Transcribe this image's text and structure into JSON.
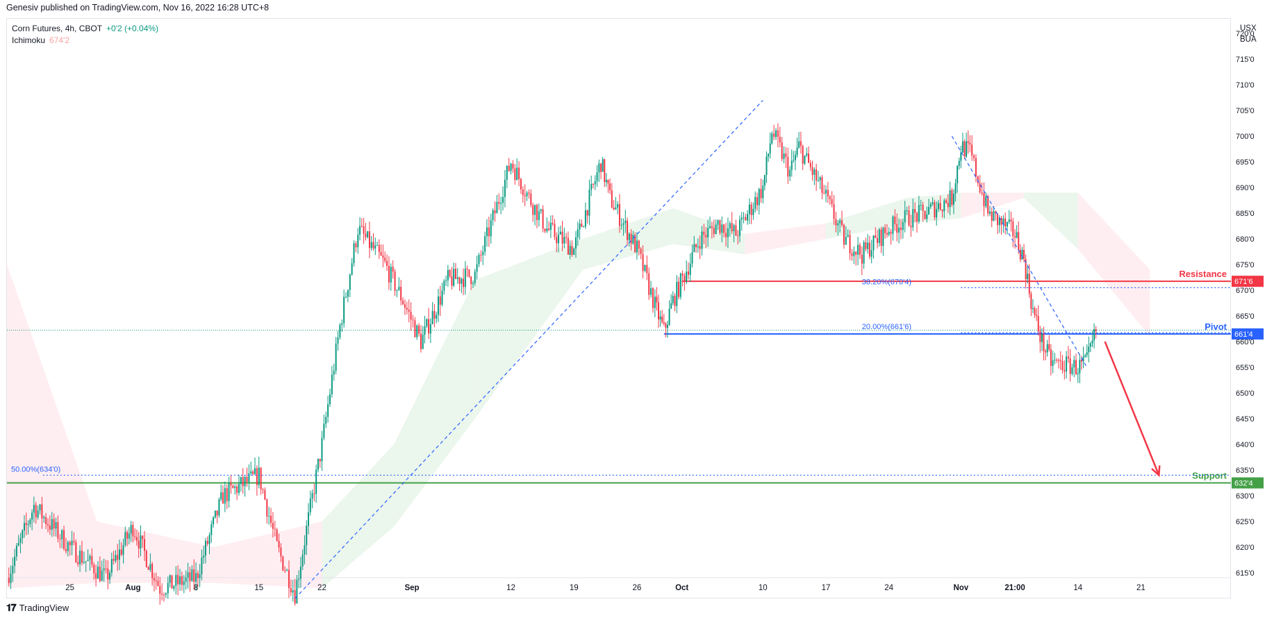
{
  "header": {
    "publisher": "Genesiv published on TradingView.com, Nov 16, 2022 16:28 UTC+8"
  },
  "legend": {
    "symbol": "Corn Futures, 4h, CBOT",
    "change": "+0'2 (+0.04%)",
    "indicator_name": "Ichimoku",
    "indicator_value": "674'2"
  },
  "currency": {
    "line1": "USX",
    "line2": "BUA"
  },
  "footer": {
    "brand": "TradingView"
  },
  "colors": {
    "up": "#089981",
    "down": "#f23645",
    "resistance": "#f23645",
    "pivot": "#2962ff",
    "support": "#43a047",
    "fib": "#2962ff",
    "cloud_bull": "#e8f5e9",
    "cloud_bear": "#ffebee"
  },
  "chart_data": {
    "type": "candlestick",
    "title": "Corn Futures, 4h, CBOT",
    "y_axis": {
      "ticks": [
        "615'0",
        "620'0",
        "625'0",
        "630'0",
        "635'0",
        "640'0",
        "645'0",
        "650'0",
        "655'0",
        "660'0",
        "665'0",
        "670'0",
        "675'0",
        "680'0",
        "685'0",
        "690'0",
        "695'0",
        "700'0",
        "705'0",
        "710'0",
        "715'0",
        "720'0"
      ],
      "range": [
        610,
        723
      ],
      "position": "right"
    },
    "x_axis": {
      "ticks": [
        "25",
        "Aug",
        "8",
        "15",
        "22",
        "Sep",
        "12",
        "19",
        "26",
        "Oct",
        "10",
        "17",
        "24",
        "Nov",
        "21:00",
        "14",
        "21"
      ],
      "range": [
        "Jul 18",
        "Dec 1"
      ]
    },
    "price_path": [
      {
        "t": "Jul 18",
        "p": 614
      },
      {
        "t": "Jul 21",
        "p": 628
      },
      {
        "t": "Jul 25",
        "p": 620
      },
      {
        "t": "Jul 29",
        "p": 614
      },
      {
        "t": "Aug 1",
        "p": 624
      },
      {
        "t": "Aug 4",
        "p": 612
      },
      {
        "t": "Aug 8",
        "p": 614
      },
      {
        "t": "Aug 11",
        "p": 630
      },
      {
        "t": "Aug 15",
        "p": 634
      },
      {
        "t": "Aug 17",
        "p": 620
      },
      {
        "t": "Aug 19",
        "p": 611
      },
      {
        "t": "Aug 22",
        "p": 640
      },
      {
        "t": "Aug 24",
        "p": 663
      },
      {
        "t": "Aug 26",
        "p": 682
      },
      {
        "t": "Aug 29",
        "p": 675
      },
      {
        "t": "Aug 31",
        "p": 668
      },
      {
        "t": "Sep 2",
        "p": 660
      },
      {
        "t": "Sep 5",
        "p": 672
      },
      {
        "t": "Sep 8",
        "p": 673
      },
      {
        "t": "Sep 12",
        "p": 695
      },
      {
        "t": "Sep 14",
        "p": 688
      },
      {
        "t": "Sep 16",
        "p": 682
      },
      {
        "t": "Sep 19",
        "p": 678
      },
      {
        "t": "Sep 22",
        "p": 695
      },
      {
        "t": "Sep 23",
        "p": 688
      },
      {
        "t": "Sep 26",
        "p": 678
      },
      {
        "t": "Sep 28",
        "p": 667
      },
      {
        "t": "Sep 29",
        "p": 662
      },
      {
        "t": "Sep 30",
        "p": 668
      },
      {
        "t": "Oct 3",
        "p": 680
      },
      {
        "t": "Oct 5",
        "p": 683
      },
      {
        "t": "Oct 7",
        "p": 681
      },
      {
        "t": "Oct 10",
        "p": 690
      },
      {
        "t": "Oct 11",
        "p": 701
      },
      {
        "t": "Oct 13",
        "p": 693
      },
      {
        "t": "Oct 14",
        "p": 698
      },
      {
        "t": "Oct 17",
        "p": 688
      },
      {
        "t": "Oct 19",
        "p": 680
      },
      {
        "t": "Oct 21",
        "p": 677
      },
      {
        "t": "Oct 24",
        "p": 682
      },
      {
        "t": "Oct 26",
        "p": 684
      },
      {
        "t": "Oct 28",
        "p": 685
      },
      {
        "t": "Oct 31",
        "p": 688
      },
      {
        "t": "Nov 1",
        "p": 698
      },
      {
        "t": "Nov 2",
        "p": 697
      },
      {
        "t": "Nov 4",
        "p": 685
      },
      {
        "t": "Nov 7",
        "p": 681
      },
      {
        "t": "Nov 8",
        "p": 676
      },
      {
        "t": "Nov 9",
        "p": 666
      },
      {
        "t": "Nov 10",
        "p": 660
      },
      {
        "t": "Nov 11",
        "p": 656
      },
      {
        "t": "Nov 14",
        "p": 655
      },
      {
        "t": "Nov 15",
        "p": 656
      },
      {
        "t": "Nov 16",
        "p": 662
      }
    ],
    "ichimoku_cloud": [
      {
        "t": "Jul 18",
        "a": 675,
        "b": 612,
        "color": "bear"
      },
      {
        "t": "Jul 28",
        "a": 625,
        "b": 613,
        "color": "bear"
      },
      {
        "t": "Aug 10",
        "a": 620,
        "b": 613,
        "color": "bear"
      },
      {
        "t": "Aug 22",
        "a": 625,
        "b": 612,
        "color": "bull"
      },
      {
        "t": "Aug 30",
        "a": 640,
        "b": 624,
        "color": "bull"
      },
      {
        "t": "Sep 8",
        "a": 672,
        "b": 645,
        "color": "bull"
      },
      {
        "t": "Sep 20",
        "a": 680,
        "b": 674,
        "color": "bull"
      },
      {
        "t": "Sep 30",
        "a": 686,
        "b": 679,
        "color": "bull"
      },
      {
        "t": "Oct 8",
        "a": 681,
        "b": 677,
        "color": "bear"
      },
      {
        "t": "Oct 17",
        "a": 683,
        "b": 680,
        "color": "bull"
      },
      {
        "t": "Oct 26",
        "a": 688,
        "b": 683,
        "color": "bull"
      },
      {
        "t": "Nov 1",
        "a": 689,
        "b": 684,
        "color": "bear"
      },
      {
        "t": "Nov 8",
        "a": 689,
        "b": 688,
        "color": "bull"
      },
      {
        "t": "Nov 14",
        "a": 689,
        "b": 678,
        "color": "bear"
      },
      {
        "t": "Nov 22",
        "a": 674,
        "b": 661,
        "color": "bear"
      }
    ],
    "fib_levels": [
      {
        "label": "38.20%(670'4)",
        "value": 670.5
      },
      {
        "label": "20.00%(661'6)",
        "value": 661.75
      },
      {
        "label": "50.00%(634'0)",
        "value": 634
      }
    ],
    "horizontal_lines": [
      {
        "name": "Resistance",
        "value": 671.75,
        "tag": "671'6"
      },
      {
        "name": "Pivot",
        "value": 661.5,
        "tag": "661'4"
      },
      {
        "name": "Support",
        "value": 632.5,
        "tag": "632'4"
      }
    ],
    "current_price": 662.25,
    "forecast_arrow": {
      "from": {
        "t": "Nov 17",
        "p": 660
      },
      "to": {
        "t": "Nov 23",
        "p": 634
      }
    },
    "trendlines": [
      {
        "from": {
          "t": "Aug 19",
          "p": 610
        },
        "to": {
          "t": "Oct 10",
          "p": 707
        }
      },
      {
        "from": {
          "t": "Oct 31",
          "p": 700
        },
        "to": {
          "t": "Nov 15",
          "p": 655
        }
      }
    ],
    "legend_placement": "top-left",
    "grid": false
  }
}
